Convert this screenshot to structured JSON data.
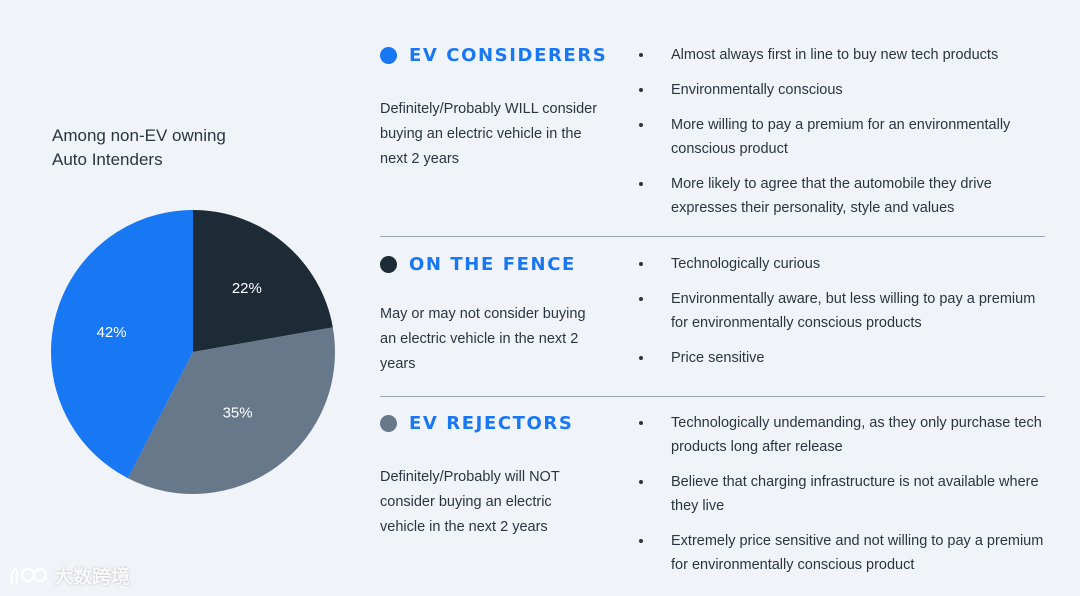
{
  "chart_data": {
    "type": "pie",
    "caption": [
      "Among non-EV owning",
      "Auto Intenders"
    ],
    "slices": [
      {
        "label": "22%",
        "value": 22,
        "color": "#1c2b35"
      },
      {
        "label": "35%",
        "value": 35,
        "color": "#67788a"
      },
      {
        "label": "42%",
        "value": 42,
        "color": "#1877f2"
      }
    ]
  },
  "segments": [
    {
      "title": "EV CONSIDERERS",
      "dot_color": "#1877f2",
      "description": "Definitely/Probably WILL consider buying an electric vehicle in the next 2 years",
      "bullets": [
        "Almost always first in line to buy new tech products",
        "Environmentally conscious",
        "More willing to pay a premium for an environmentally conscious product",
        "More likely to agree that the automobile they drive expresses their personality, style and values"
      ]
    },
    {
      "title": "ON THE FENCE",
      "dot_color": "#1c2b35",
      "description": "May or may not consider buying an electric vehicle in the next 2 years",
      "bullets": [
        "Technologically curious",
        "Environmentally aware, but less willing to pay a premium for environmentally conscious products",
        "Price sensitive"
      ]
    },
    {
      "title": "EV REJECTORS",
      "dot_color": "#67788a",
      "description": "Definitely/Probably will NOT consider buying an electric vehicle in the next 2 years",
      "bullets": [
        "Technologically undemanding, as they only purchase tech products long after release",
        "Believe that charging infrastructure is not available where they live",
        "Extremely price sensitive and not willing to pay a premium for environmentally conscious product"
      ]
    }
  ],
  "watermark": "大数跨境"
}
